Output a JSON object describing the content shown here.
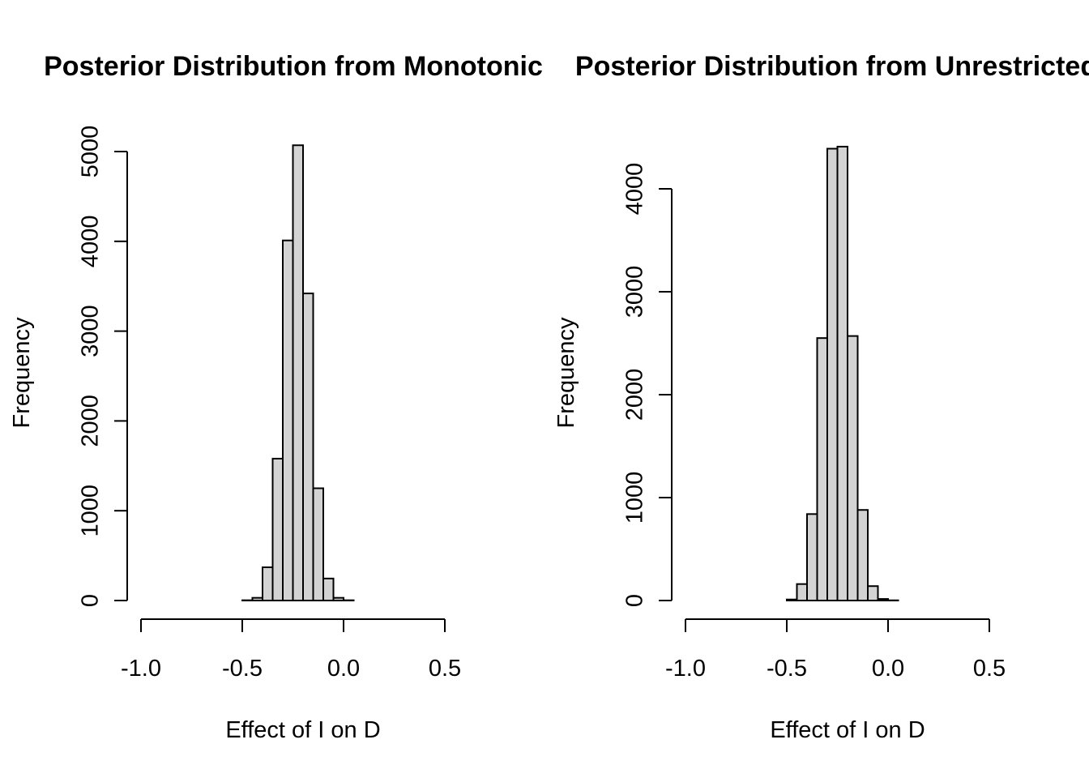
{
  "chart_data": [
    {
      "type": "bar",
      "title": "Posterior Distribution from Monotonic",
      "xlabel": "Effect of I on D",
      "ylabel": "Frequency",
      "xlim": [
        -1.0,
        0.5
      ],
      "xticks": [
        -1.0,
        -0.5,
        0.0,
        0.5
      ],
      "xtick_labels": [
        "-1.0",
        "-0.5",
        "0.0",
        "0.5"
      ],
      "yticks": [
        0,
        1000,
        2000,
        3000,
        4000,
        5000
      ],
      "ytick_labels": [
        "0",
        "1000",
        "2000",
        "3000",
        "4000",
        "5000"
      ],
      "bin_width": 0.05,
      "bins_start": [
        -0.5,
        -0.45,
        -0.4,
        -0.35,
        -0.3,
        -0.25,
        -0.2,
        -0.15,
        -0.1,
        -0.05,
        0.0
      ],
      "values": [
        3,
        30,
        370,
        1580,
        4010,
        5070,
        3420,
        1250,
        245,
        30,
        3
      ],
      "bar_color": "#d3d3d3"
    },
    {
      "type": "bar",
      "title": "Posterior Distribution from Unrestricted",
      "xlabel": "Effect of I on D",
      "ylabel": "Frequency",
      "xlim": [
        -1.0,
        0.5
      ],
      "xticks": [
        -1.0,
        -0.5,
        0.0,
        0.5
      ],
      "xtick_labels": [
        "-1.0",
        "-0.5",
        "0.0",
        "0.5"
      ],
      "yticks": [
        0,
        1000,
        2000,
        3000,
        4000
      ],
      "ytick_labels": [
        "0",
        "1000",
        "2000",
        "3000",
        "4000"
      ],
      "bin_width": 0.05,
      "bins_start": [
        -0.5,
        -0.45,
        -0.4,
        -0.35,
        -0.3,
        -0.25,
        -0.2,
        -0.15,
        -0.1,
        -0.05,
        0.0
      ],
      "values": [
        10,
        160,
        840,
        2550,
        4390,
        4410,
        2570,
        880,
        140,
        15,
        2
      ],
      "bar_color": "#d3d3d3"
    }
  ]
}
